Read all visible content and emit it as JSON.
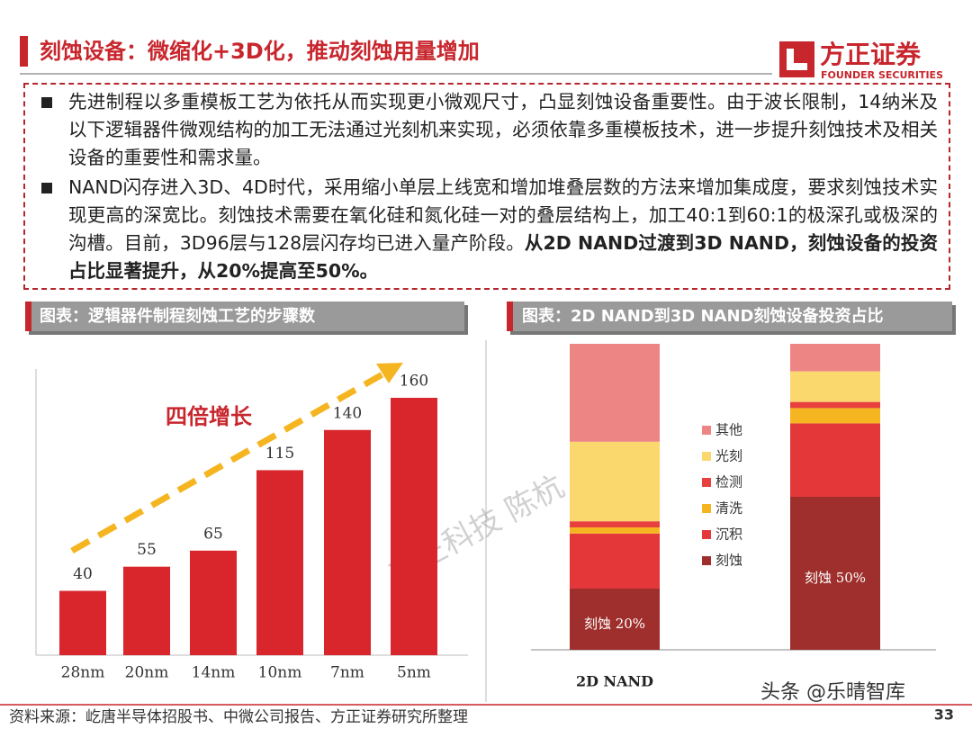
{
  "header": {
    "title": "刻蚀设备：微缩化+3D化，推动刻蚀用量增加",
    "logo": "方正证券",
    "logo_sub": "FOUNDER SECURITIES"
  },
  "bullets": [
    {
      "text": "先进制程以多重模板工艺为依托从而实现更小微观尺寸，凸显刻蚀设备重要性。由于波长限制，14纳米及以下逻辑器件微观结构的加工无法通过光刻机来实现，必须依靠多重模板技术，进一步提升刻蚀技术及相关设备的重要性和需求量。"
    },
    {
      "text": "NAND闪存进入3D、4D时代，采用缩小单层上线宽和增加堆叠层数的方法来增加集成度，要求刻蚀技术实现更高的深宽比。刻蚀技术需要在氧化硅和氮化硅一对的叠层结构上，加工40:1到60:1的极深孔或极深的沟槽。目前，3D96层与128层闪存均已进入量产阶段。",
      "bold": "从2D NAND过渡到3D NAND，刻蚀设备的投资占比显著提升，从20%提高至50%。"
    }
  ],
  "chart_data": [
    {
      "type": "bar",
      "title": "图表：逻辑器件制程刻蚀工艺的步骤数",
      "categories": [
        "28nm",
        "20nm",
        "14nm",
        "10nm",
        "7nm",
        "5nm"
      ],
      "values": [
        40,
        55,
        65,
        115,
        140,
        160
      ],
      "color": "#d9262c",
      "annotation": "四倍增长"
    },
    {
      "type": "stacked_bar",
      "title": "图表：2D NAND到3D NAND刻蚀设备投资占比",
      "categories": [
        "2D NAND",
        null
      ],
      "series": [
        {
          "name": "刻蚀",
          "color": "#9e2f2c",
          "values": [
            20,
            50
          ],
          "value_labels": [
            "刻蚀 20%",
            "刻蚀 50%"
          ]
        },
        {
          "name": "沉积",
          "color": "#e3373a",
          "values": [
            18,
            24
          ]
        },
        {
          "name": "清洗",
          "color": "#f5b521",
          "values": [
            2,
            5
          ]
        },
        {
          "name": "检测",
          "color": "#e8403e",
          "values": [
            2,
            2
          ]
        },
        {
          "name": "光刻",
          "color": "#fbd86e",
          "values": [
            26,
            10
          ]
        },
        {
          "name": "其他",
          "color": "#ee8585",
          "values": [
            32,
            9
          ]
        }
      ]
    }
  ],
  "watermarks": [
    "方正科技 陈杭",
    "头条 @乐晴智库"
  ],
  "footer": {
    "source": "资料来源：屹唐半导体招股书、中微公司报告、方正证券研究所整理",
    "page": "33"
  }
}
